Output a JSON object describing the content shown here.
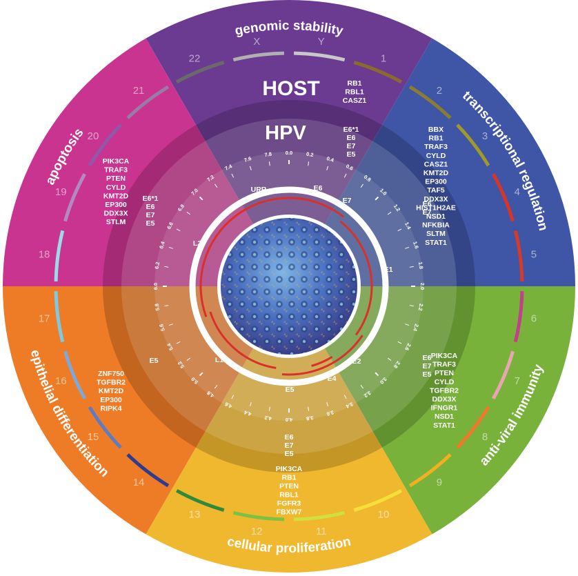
{
  "diagram": {
    "host_title": "HOST",
    "hpv_title": "HPV",
    "sectors": [
      {
        "label": "genomic stability",
        "color": "#6b3a91"
      },
      {
        "label": "transcriptional regulation",
        "color": "#3f55a5"
      },
      {
        "label": "anti-viral immunity",
        "color": "#78b23a"
      },
      {
        "label": "cellular proliferation",
        "color": "#f0b82f"
      },
      {
        "label": "epithelial differentiation",
        "color": "#ee7c26"
      },
      {
        "label": "apoptosis",
        "color": "#c8348f"
      }
    ],
    "gene_groups": {
      "genomic_host": [
        "RB1",
        "RBL1",
        "CASZ1"
      ],
      "genomic_hpv": [
        "E6*1",
        "E6",
        "E7",
        "E5"
      ],
      "transcriptional_hpv": [
        "E6",
        "E7"
      ],
      "transcriptional_host": [
        "BBX",
        "RB1",
        "TRAF3",
        "CYLD",
        "CASZ1",
        "KMT2D",
        "EP300",
        "TAF5",
        "DDX3X",
        "HIST1H2AE",
        "NSD1",
        "NFKBIA",
        "SLTM",
        "STAT1"
      ],
      "antiviral_hpv": [
        "E6",
        "E7",
        "E5"
      ],
      "antiviral_host": [
        "PIK3CA",
        "TRAF3",
        "PTEN",
        "CYLD",
        "TGFBR2",
        "DDX3X",
        "IFNGR1",
        "NSD1",
        "STAT1"
      ],
      "proliferation_hpv": [
        "E6",
        "E7",
        "E5"
      ],
      "proliferation_host": [
        "PIK3CA",
        "RB1",
        "PTEN",
        "RBL1",
        "FGFR3",
        "FBXW7"
      ],
      "epithelial_hpv": [
        "E5"
      ],
      "epithelial_host": [
        "ZNF750",
        "TGFBR2",
        "KMT2D",
        "EP300",
        "RIPK4"
      ],
      "apoptosis_hpv": [
        "E6*1",
        "E6",
        "E7",
        "E5"
      ],
      "apoptosis_host": [
        "PIK3CA",
        "TRAF3",
        "PTEN",
        "CYLD",
        "KMT2D",
        "EP300",
        "DDX3X",
        "STLM"
      ]
    },
    "chromosomes": [
      "1",
      "2",
      "3",
      "4",
      "5",
      "6",
      "7",
      "8",
      "9",
      "10",
      "11",
      "12",
      "13",
      "14",
      "15",
      "16",
      "17",
      "18",
      "19",
      "20",
      "21",
      "22",
      "X",
      "Y"
    ],
    "chromosome_colors": [
      "#8b6a2f",
      "#8a7d33",
      "#a09a2a",
      "#d6352a",
      "#d63a2a",
      "#c0408a",
      "#e8a6b3",
      "#f07a2a",
      "#f0b020",
      "#f5e03a",
      "#d0e040",
      "#7cc242",
      "#2f8a3a",
      "#2f3b8f",
      "#5f7cc2",
      "#7fa7d8",
      "#7fc8e0",
      "#9fd8e8",
      "#b28ac0",
      "#8e5aa8",
      "#9a7aa8",
      "#6a6a6a",
      "#b0b0b0",
      "#c8c8c8"
    ],
    "genome_ticks": [
      "0.0",
      "0.2",
      "0.4",
      "0.6",
      "0.8",
      "1.0",
      "1.2",
      "1.4",
      "1.6",
      "1.8",
      "2.0",
      "2.2",
      "2.4",
      "2.6",
      "2.8",
      "3.0",
      "3.2",
      "3.4",
      "3.6",
      "3.8",
      "4.0",
      "4.2",
      "4.4",
      "4.6",
      "4.8",
      "5.0",
      "5.2",
      "5.4",
      "5.6",
      "5.8",
      "6.0",
      "6.2",
      "6.4",
      "6.6",
      "6.8",
      "7.0",
      "7.2",
      "7.4",
      "7.6",
      "7.8"
    ],
    "hpv_regions": [
      "URR",
      "E6",
      "E7",
      "E1",
      "E2",
      "E4",
      "E5",
      "L1",
      "L2"
    ]
  }
}
